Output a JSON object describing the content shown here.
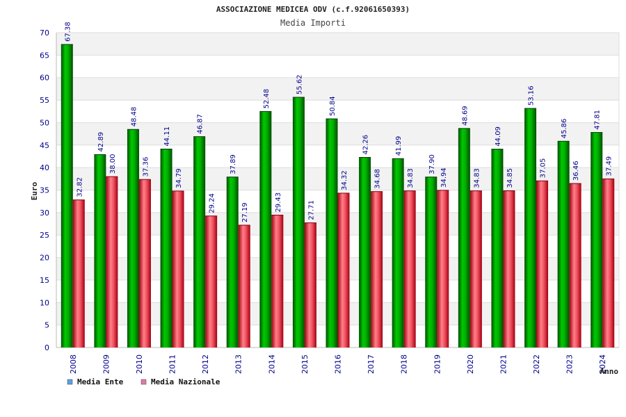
{
  "chart_data": {
    "type": "bar",
    "title": "ASSOCIAZIONE MEDICEA ODV (c.f.92061650393)",
    "subtitle": "Media Importi",
    "xlabel": "Anno",
    "ylabel": "Euro",
    "ylim": [
      0,
      70
    ],
    "ytick_step": 5,
    "categories": [
      "2008",
      "2009",
      "2010",
      "2011",
      "2012",
      "2013",
      "2014",
      "2015",
      "2016",
      "2017",
      "2018",
      "2019",
      "2020",
      "2021",
      "2022",
      "2023",
      "2024"
    ],
    "series": [
      {
        "name": "Media Ente",
        "color": "#00a000",
        "legend_color": "#5aa0e6",
        "values": [
          67.38,
          42.89,
          48.48,
          44.11,
          46.87,
          37.89,
          52.48,
          55.62,
          50.84,
          42.26,
          41.99,
          37.9,
          48.69,
          44.09,
          53.16,
          45.86,
          47.81
        ],
        "labels": [
          "67.38",
          "42.89",
          "48.48",
          "44.11",
          "46.87",
          "37.89",
          "52.48",
          "55.62",
          "50.84",
          "42.26",
          "41.99",
          "37.90",
          "48.69",
          "44.09",
          "53.16",
          "45.86",
          "47.81"
        ]
      },
      {
        "name": "Media Nazionale",
        "color": "#e8404a",
        "legend_color": "#e07aa8",
        "values": [
          32.82,
          38.0,
          37.36,
          34.79,
          29.24,
          27.19,
          29.43,
          27.71,
          34.32,
          34.68,
          34.83,
          34.94,
          34.83,
          34.85,
          37.05,
          36.46,
          37.49
        ],
        "labels": [
          "32.82",
          "38.00",
          "37.36",
          "34.79",
          "29.24",
          "27.19",
          "29.43",
          "27.71",
          "34.32",
          "34.68",
          "34.83",
          "34.94",
          "34.83",
          "34.85",
          "37.05",
          "36.46",
          "37.49"
        ]
      }
    ],
    "grid": true,
    "legend": "bottom-left"
  }
}
